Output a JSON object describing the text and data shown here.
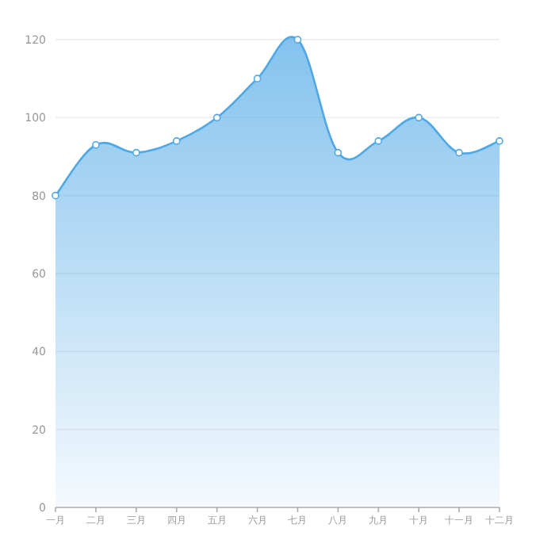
{
  "chart_data": {
    "type": "area",
    "categories": [
      "一月",
      "二月",
      "三月",
      "四月",
      "五月",
      "六月",
      "七月",
      "八月",
      "九月",
      "十月",
      "十一月",
      "十二月"
    ],
    "values": [
      80,
      93,
      91,
      94,
      100,
      110,
      120,
      91,
      94,
      100,
      91,
      94
    ],
    "color": "#4fa8e6",
    "ylim": [
      0,
      120
    ],
    "yticks": [
      0,
      20,
      40,
      60,
      80,
      100,
      120
    ],
    "grid": "y",
    "marker": "circle"
  }
}
